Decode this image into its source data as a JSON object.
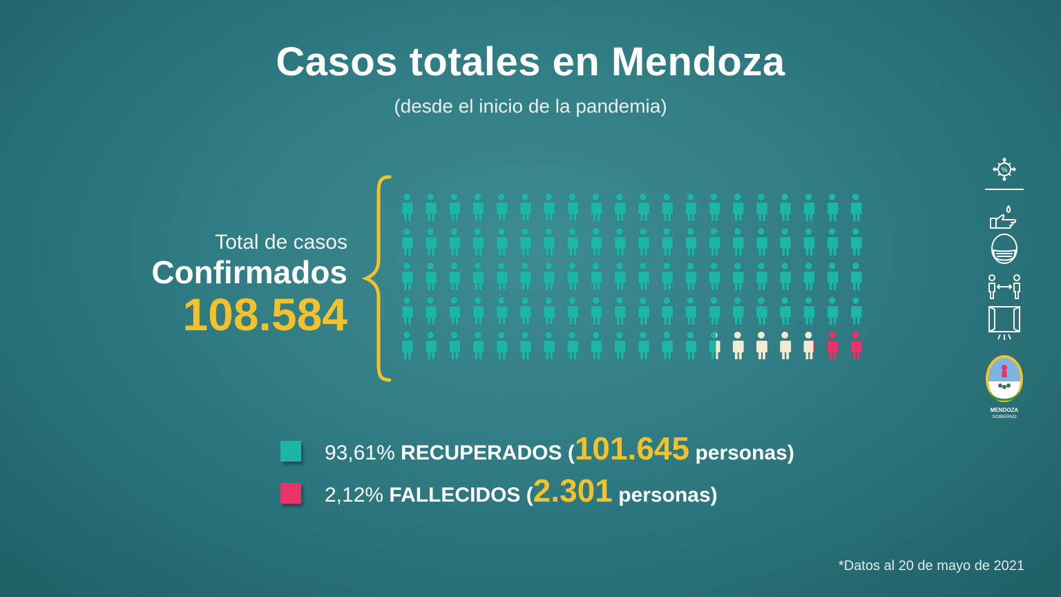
{
  "title": "Casos totales en Mendoza",
  "subtitle": "(desde el inicio de la pandemia)",
  "total": {
    "label": "Total de casos",
    "category": "Confirmados",
    "value": "108.584"
  },
  "legend": [
    {
      "percent": "93,61%",
      "label": "RECUPERADOS",
      "open": "(",
      "count": "101.645",
      "unit": "personas)",
      "color": "#1db5a6"
    },
    {
      "percent": "2,12%",
      "label": "FALLECIDOS",
      "open": "(",
      "count": "2.301",
      "unit": "personas)",
      "color": "#e8336a"
    }
  ],
  "footnote": "*Datos al 20 de mayo de 2021",
  "logo": {
    "line1": "MENDOZA",
    "line2": "GOBIERNO"
  },
  "colors": {
    "recovered": "#1db5a6",
    "active": "#f4ead3",
    "deceased": "#e8336a",
    "accent": "#f2c12e",
    "brace": "#f2c12e"
  },
  "icons": [
    "virus-icon",
    "hand-wash-icon",
    "face-mask-icon",
    "social-distance-icon",
    "ventilation-window-icon"
  ],
  "chart_data": {
    "type": "pictogram",
    "title": "Casos totales en Mendoza",
    "total": 108584,
    "rows": 5,
    "columns": 20,
    "series": [
      {
        "name": "RECUPERADOS",
        "percent": 93.61,
        "count": 101645,
        "color": "#1db5a6"
      },
      {
        "name": "",
        "percent": 4.27,
        "count": 4638,
        "color": "#f4ead3"
      },
      {
        "name": "FALLECIDOS",
        "percent": 2.12,
        "count": 2301,
        "color": "#e8336a"
      }
    ]
  }
}
